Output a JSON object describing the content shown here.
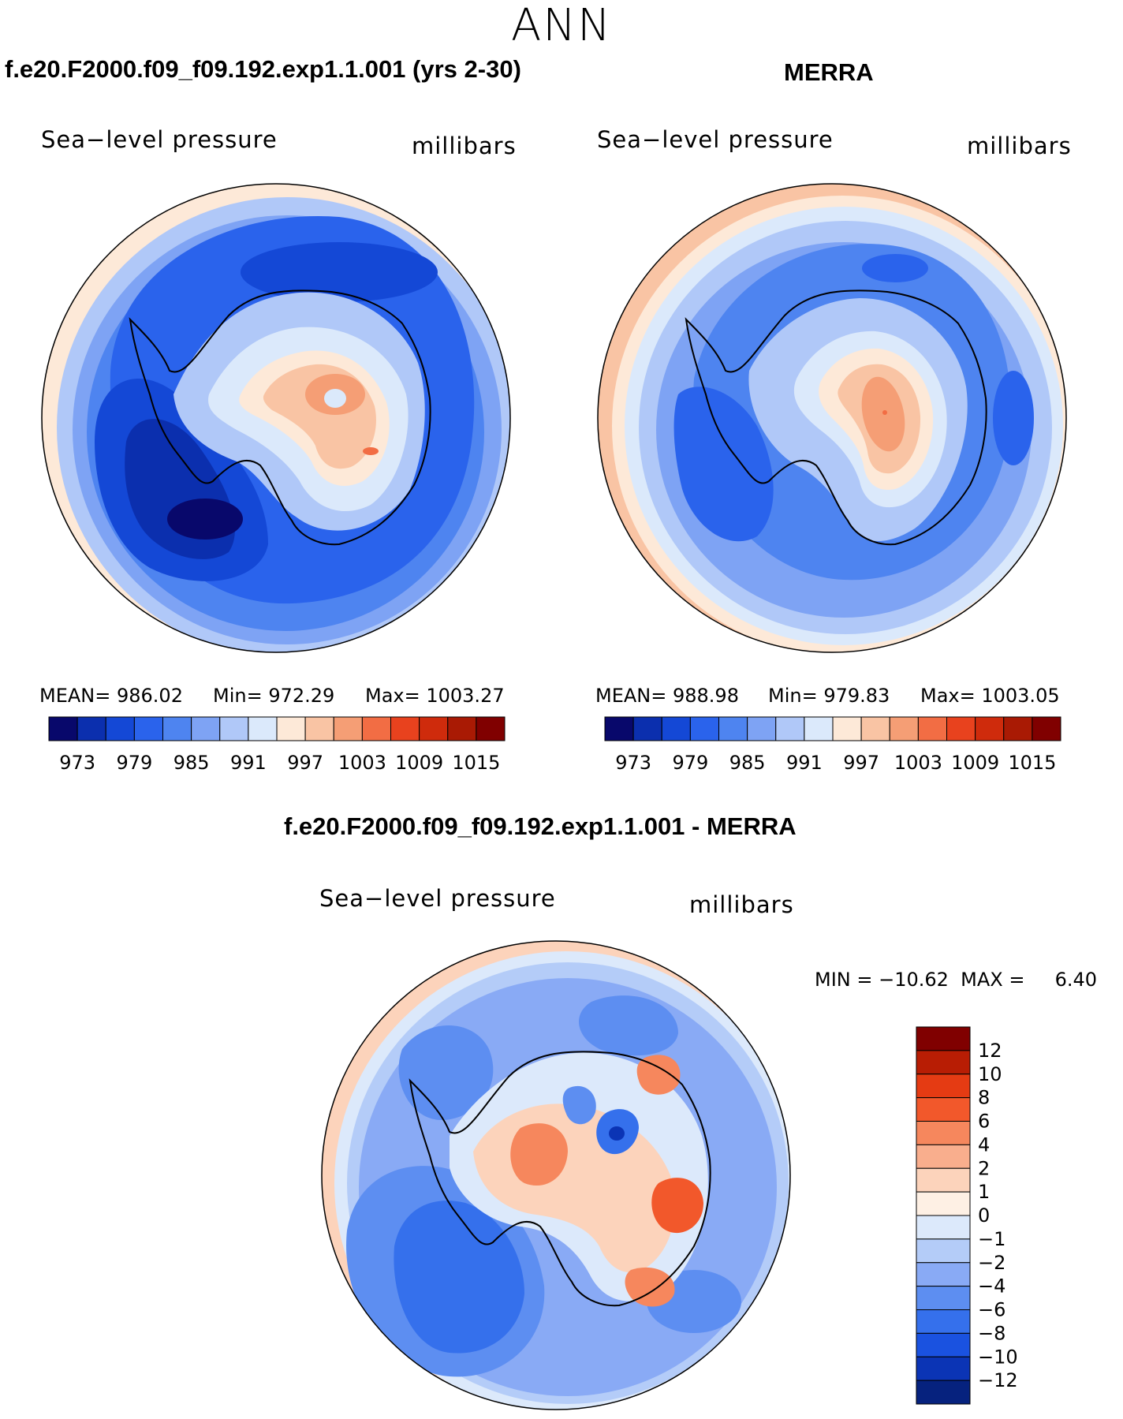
{
  "title": "ANN",
  "panels": [
    {
      "case_label": "f.e20.F2000.f09_f09.192.exp1.1.001 (yrs 2-30)",
      "variable": "Sea−level pressure",
      "units": "millibars",
      "stats": {
        "mean": "MEAN= 986.02",
        "min": "Min= 972.29",
        "max": "Max= 1003.27"
      }
    },
    {
      "case_label": "MERRA",
      "variable": "Sea−level pressure",
      "units": "millibars",
      "stats": {
        "mean": "MEAN= 988.98",
        "min": "Min= 979.83",
        "max": "Max= 1003.05"
      }
    },
    {
      "case_label": "f.e20.F2000.f09_f09.192.exp1.1.001 - MERRA",
      "variable": "Sea−level pressure",
      "units": "millibars",
      "stats": {
        "minmax": "MIN = −10.62  MAX =     6.40"
      }
    }
  ],
  "colorbar_top": {
    "tick_labels": [
      "973",
      "979",
      "985",
      "991",
      "997",
      "1003",
      "1009",
      "1015"
    ],
    "colors": [
      "#08086b",
      "#0b2fae",
      "#1448d6",
      "#2a63ec",
      "#4e84f0",
      "#7ea3f4",
      "#b0c8f8",
      "#dbe9fb",
      "#fde9d8",
      "#f9c4a4",
      "#f59e75",
      "#f26d44",
      "#e8421e",
      "#cf2b0c",
      "#a91a04",
      "#800000"
    ]
  },
  "colorbar_diff": {
    "tick_labels": [
      "12",
      "10",
      "8",
      "6",
      "4",
      "2",
      "1",
      "0",
      "−1",
      "−2",
      "−4",
      "−6",
      "−8",
      "−10",
      "−12"
    ],
    "colors": [
      "#800000",
      "#b81d04",
      "#e53b13",
      "#f2582b",
      "#f6875d",
      "#f9ae8d",
      "#fcd3bb",
      "#fef0e4",
      "#dce9fb",
      "#b4ccf8",
      "#89aaf5",
      "#5d8ef1",
      "#3570ec",
      "#1a52e0",
      "#0b34b5",
      "#06227e"
    ]
  },
  "chart_data": [
    {
      "type": "heatmap",
      "title": "f.e20.F2000.f09_f09.192.exp1.1.001 (yrs 2-30)",
      "variable": "Sea−level pressure",
      "units": "millibars",
      "projection": "south-polar stereographic",
      "mean": 986.02,
      "min": 972.29,
      "max": 1003.27,
      "contour_levels": [
        973,
        976,
        979,
        982,
        985,
        988,
        991,
        994,
        997,
        1000,
        1003,
        1006,
        1009,
        1012,
        1015
      ]
    },
    {
      "type": "heatmap",
      "title": "MERRA",
      "variable": "Sea−level pressure",
      "units": "millibars",
      "projection": "south-polar stereographic",
      "mean": 988.98,
      "min": 979.83,
      "max": 1003.05,
      "contour_levels": [
        973,
        976,
        979,
        982,
        985,
        988,
        991,
        994,
        997,
        1000,
        1003,
        1006,
        1009,
        1012,
        1015
      ]
    },
    {
      "type": "heatmap",
      "title": "f.e20.F2000.f09_f09.192.exp1.1.001 - MERRA",
      "variable": "Sea−level pressure",
      "units": "millibars",
      "projection": "south-polar stereographic",
      "min": -10.62,
      "max": 6.4,
      "contour_levels": [
        -12,
        -10,
        -8,
        -6,
        -4,
        -2,
        -1,
        0,
        1,
        2,
        4,
        6,
        8,
        10,
        12
      ]
    }
  ]
}
